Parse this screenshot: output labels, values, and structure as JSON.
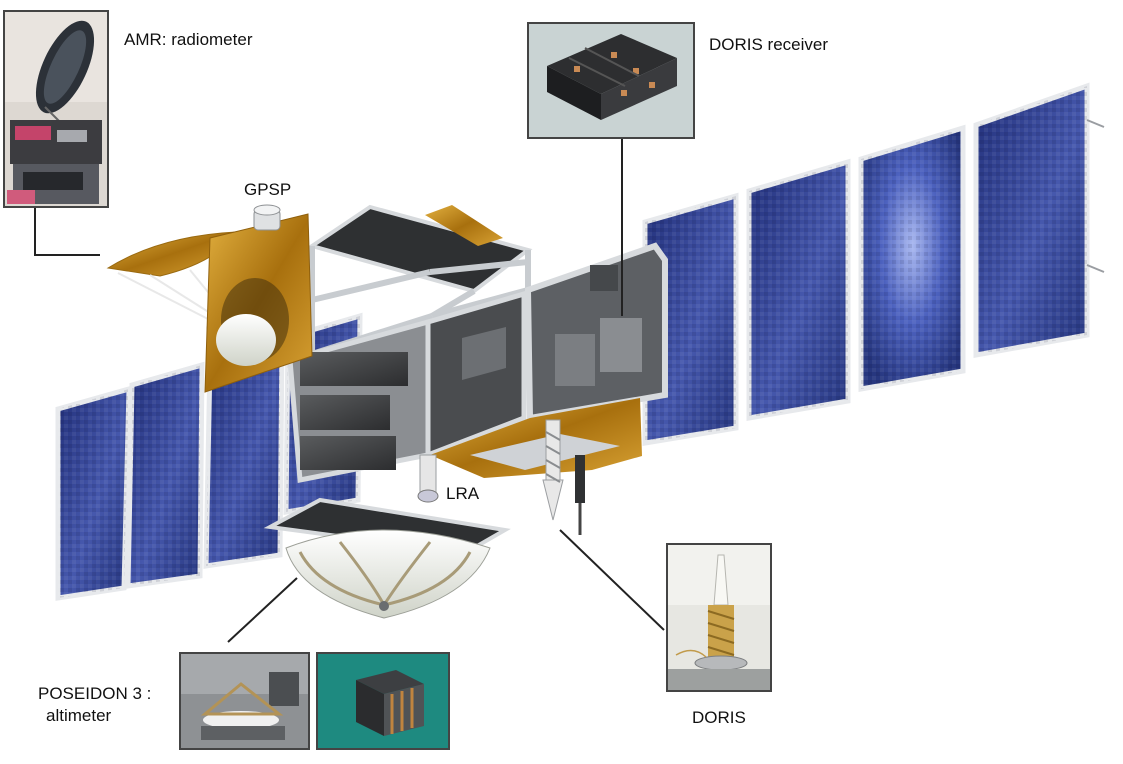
{
  "labels": {
    "amr": "AMR: radiometer",
    "gpsp": "GPSP",
    "doris_receiver": "DORIS receiver",
    "lra": "LRA",
    "doris": "DORIS",
    "poseidon_line1": "POSEIDON 3 :",
    "poseidon_line2": "altimeter"
  },
  "colors": {
    "solar_panel": "#2f3f8f",
    "solar_panel_light": "#5c72c8",
    "gold_foil": "#c9901c",
    "frame": "#c8ccd0",
    "leader_line": "#222222"
  }
}
